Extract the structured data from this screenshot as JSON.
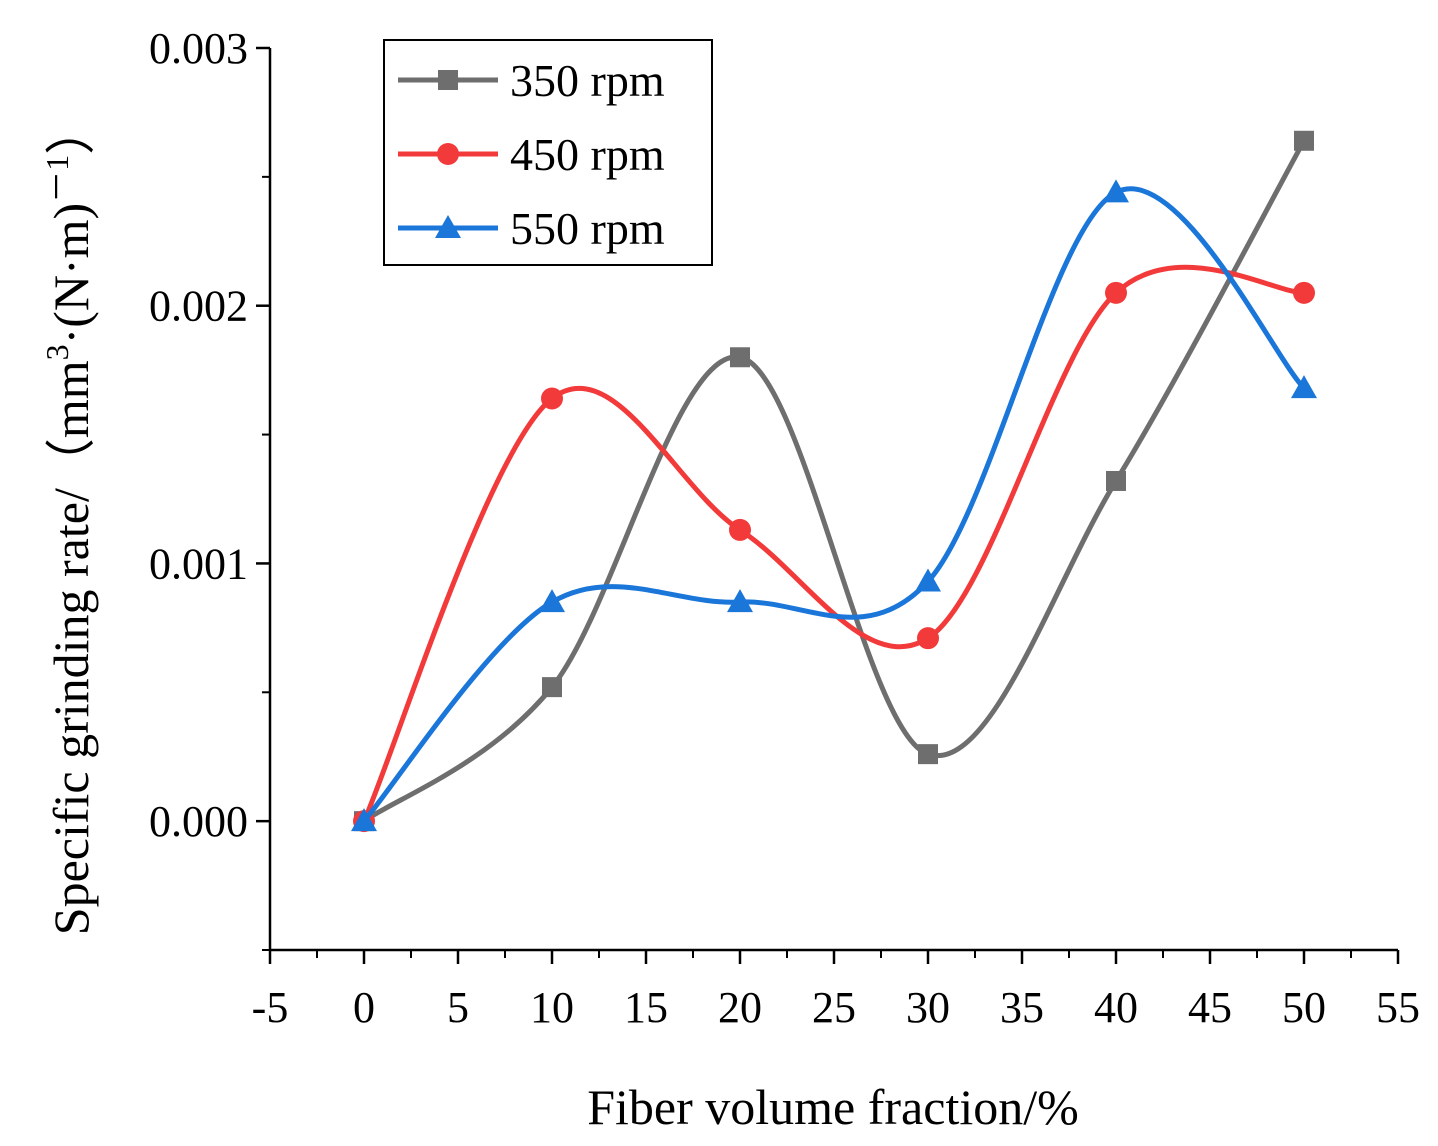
{
  "chart_data": {
    "type": "line",
    "smooth": true,
    "x": [
      0,
      10,
      20,
      30,
      40,
      50
    ],
    "series": [
      {
        "name": "350 rpm",
        "marker": "square",
        "color": "#6e6e6e",
        "values": [
          0.0,
          0.00052,
          0.0018,
          0.00026,
          0.00132,
          0.00264
        ]
      },
      {
        "name": "450 rpm",
        "marker": "circle",
        "color": "#f23a3a",
        "values": [
          0.0,
          0.00164,
          0.00113,
          0.00071,
          0.00205,
          0.00205
        ]
      },
      {
        "name": "550 rpm",
        "marker": "triangle",
        "color": "#1a76d9",
        "values": [
          0.0,
          0.00085,
          0.00085,
          0.00093,
          0.00244,
          0.00168
        ]
      }
    ],
    "xlabel": "Fiber volume fraction/%",
    "ylabel_main": "Specific grinding rate/（mm",
    "ylabel_sup1": "3",
    "ylabel_mid": "·(N·m)",
    "ylabel_sup2": "－1",
    "ylabel_end": "）",
    "xlim": [
      -5,
      55
    ],
    "ylim": [
      -0.0005,
      0.003
    ],
    "xticks": [
      -5,
      0,
      5,
      10,
      15,
      20,
      25,
      30,
      35,
      40,
      45,
      50,
      55
    ],
    "xtick_labels": [
      "-5",
      "0",
      "5",
      "10",
      "15",
      "20",
      "25",
      "30",
      "35",
      "40",
      "45",
      "50",
      "55"
    ],
    "yticks": [
      0,
      0.001,
      0.002,
      0.003
    ],
    "ytick_labels": [
      "0.000",
      "0.001",
      "0.002",
      "0.003"
    ],
    "legend_position": "top-left",
    "grid": false
  }
}
